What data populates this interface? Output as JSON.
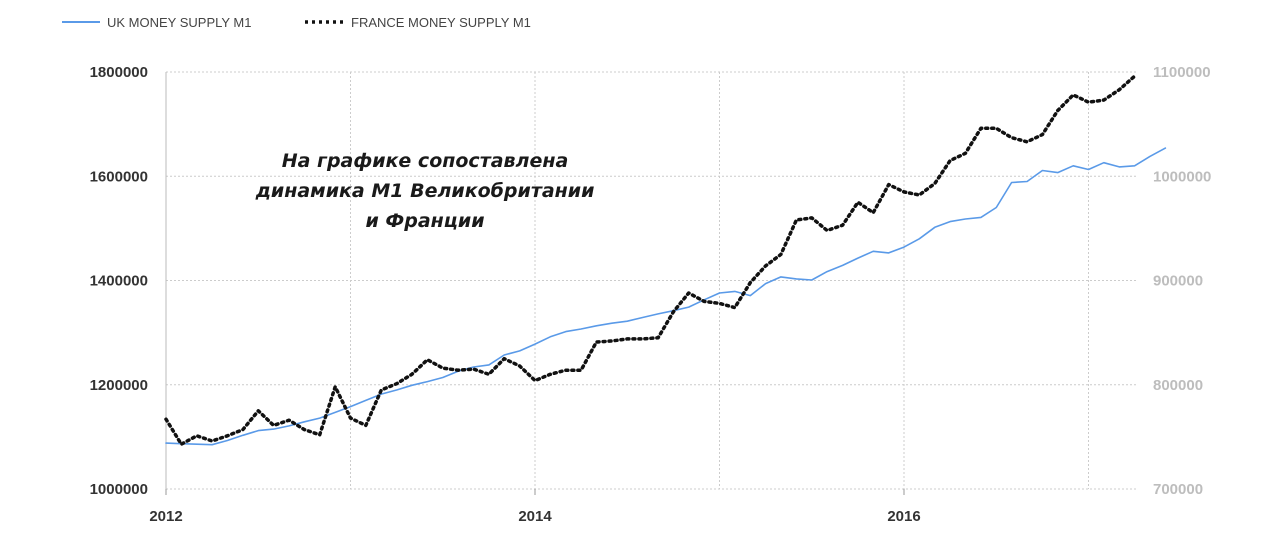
{
  "chart_data": {
    "type": "line",
    "title": "",
    "xlabel": "",
    "ylabel": "",
    "x_ticks": [
      "2012",
      "2014",
      "2016"
    ],
    "y_left_ticks": [
      "1800000",
      "1600000",
      "1400000",
      "1200000",
      "1000000"
    ],
    "y_right_ticks": [
      "1100000",
      "1000000",
      "900000",
      "800000",
      "700000"
    ],
    "ylim_left": [
      1000000,
      1800000
    ],
    "ylim_right": [
      700000,
      1100000
    ],
    "xlim": [
      2012,
      2017.4
    ],
    "grid": true,
    "legend_position": "top-left",
    "annotation": [
      "На графике сопоставлена",
      "динамика М1 Великобритании",
      "и Франции"
    ],
    "series": [
      {
        "name": "UK MONEY SUPPLY M1",
        "axis": "left",
        "color": "#5a9ae8",
        "style": "solid",
        "points": [
          [
            2012.0,
            1088000
          ],
          [
            2012.083,
            1087000
          ],
          [
            2012.167,
            1086000
          ],
          [
            2012.25,
            1085000
          ],
          [
            2012.333,
            1093000
          ],
          [
            2012.417,
            1103000
          ],
          [
            2012.5,
            1112000
          ],
          [
            2012.583,
            1115000
          ],
          [
            2012.667,
            1121000
          ],
          [
            2012.75,
            1129000
          ],
          [
            2012.833,
            1136000
          ],
          [
            2012.917,
            1147000
          ],
          [
            2013.0,
            1158000
          ],
          [
            2013.083,
            1170000
          ],
          [
            2013.167,
            1182000
          ],
          [
            2013.25,
            1190000
          ],
          [
            2013.333,
            1199000
          ],
          [
            2013.417,
            1206000
          ],
          [
            2013.5,
            1214000
          ],
          [
            2013.583,
            1226000
          ],
          [
            2013.667,
            1234000
          ],
          [
            2013.75,
            1238000
          ],
          [
            2013.833,
            1257000
          ],
          [
            2013.917,
            1265000
          ],
          [
            2014.0,
            1278000
          ],
          [
            2014.083,
            1292000
          ],
          [
            2014.167,
            1302000
          ],
          [
            2014.25,
            1307000
          ],
          [
            2014.333,
            1313000
          ],
          [
            2014.417,
            1318000
          ],
          [
            2014.5,
            1322000
          ],
          [
            2014.583,
            1329000
          ],
          [
            2014.667,
            1336000
          ],
          [
            2014.75,
            1342000
          ],
          [
            2014.833,
            1349000
          ],
          [
            2014.917,
            1363000
          ],
          [
            2015.0,
            1376000
          ],
          [
            2015.083,
            1379000
          ],
          [
            2015.167,
            1371000
          ],
          [
            2015.25,
            1394000
          ],
          [
            2015.333,
            1407000
          ],
          [
            2015.417,
            1403000
          ],
          [
            2015.5,
            1401000
          ],
          [
            2015.583,
            1417000
          ],
          [
            2015.667,
            1429000
          ],
          [
            2015.75,
            1443000
          ],
          [
            2015.833,
            1456000
          ],
          [
            2015.917,
            1453000
          ],
          [
            2016.0,
            1464000
          ],
          [
            2016.083,
            1480000
          ],
          [
            2016.167,
            1502000
          ],
          [
            2016.25,
            1513000
          ],
          [
            2016.333,
            1518000
          ],
          [
            2016.417,
            1521000
          ],
          [
            2016.5,
            1540000
          ],
          [
            2016.583,
            1588000
          ],
          [
            2016.667,
            1590000
          ],
          [
            2016.75,
            1611000
          ],
          [
            2016.833,
            1607000
          ],
          [
            2016.917,
            1620000
          ],
          [
            2017.0,
            1613000
          ],
          [
            2017.083,
            1626000
          ],
          [
            2017.167,
            1618000
          ],
          [
            2017.25,
            1620000
          ],
          [
            2017.333,
            1638000
          ],
          [
            2017.417,
            1654000
          ]
        ]
      },
      {
        "name": "FRANCE MONEY SUPPLY M1",
        "axis": "right",
        "color": "#111111",
        "style": "dotted",
        "points": [
          [
            2012.0,
            767000
          ],
          [
            2012.083,
            743000
          ],
          [
            2012.167,
            751000
          ],
          [
            2012.25,
            746000
          ],
          [
            2012.333,
            751000
          ],
          [
            2012.417,
            757000
          ],
          [
            2012.5,
            775000
          ],
          [
            2012.583,
            761000
          ],
          [
            2012.667,
            766000
          ],
          [
            2012.75,
            757000
          ],
          [
            2012.833,
            752000
          ],
          [
            2012.917,
            798000
          ],
          [
            2013.0,
            768000
          ],
          [
            2013.083,
            761000
          ],
          [
            2013.167,
            795000
          ],
          [
            2013.25,
            801000
          ],
          [
            2013.333,
            810000
          ],
          [
            2013.417,
            824000
          ],
          [
            2013.5,
            816000
          ],
          [
            2013.583,
            814000
          ],
          [
            2013.667,
            815000
          ],
          [
            2013.75,
            810000
          ],
          [
            2013.833,
            825000
          ],
          [
            2013.917,
            818000
          ],
          [
            2014.0,
            804000
          ],
          [
            2014.083,
            810000
          ],
          [
            2014.167,
            814000
          ],
          [
            2014.25,
            814000
          ],
          [
            2014.333,
            841000
          ],
          [
            2014.417,
            842000
          ],
          [
            2014.5,
            844000
          ],
          [
            2014.583,
            844000
          ],
          [
            2014.667,
            845000
          ],
          [
            2014.75,
            870000
          ],
          [
            2014.833,
            888000
          ],
          [
            2014.917,
            880000
          ],
          [
            2015.0,
            878000
          ],
          [
            2015.083,
            874000
          ],
          [
            2015.167,
            898000
          ],
          [
            2015.25,
            914000
          ],
          [
            2015.333,
            925000
          ],
          [
            2015.417,
            958000
          ],
          [
            2015.5,
            960000
          ],
          [
            2015.583,
            948000
          ],
          [
            2015.667,
            953000
          ],
          [
            2015.75,
            975000
          ],
          [
            2015.833,
            965000
          ],
          [
            2015.917,
            992000
          ],
          [
            2016.0,
            985000
          ],
          [
            2016.083,
            982000
          ],
          [
            2016.167,
            993000
          ],
          [
            2016.25,
            1015000
          ],
          [
            2016.333,
            1022000
          ],
          [
            2016.417,
            1046000
          ],
          [
            2016.5,
            1046000
          ],
          [
            2016.583,
            1037000
          ],
          [
            2016.667,
            1033000
          ],
          [
            2016.75,
            1040000
          ],
          [
            2016.833,
            1063000
          ],
          [
            2016.917,
            1078000
          ],
          [
            2017.0,
            1071000
          ],
          [
            2017.083,
            1073000
          ],
          [
            2017.167,
            1083000
          ],
          [
            2017.25,
            1096000
          ]
        ]
      }
    ]
  }
}
